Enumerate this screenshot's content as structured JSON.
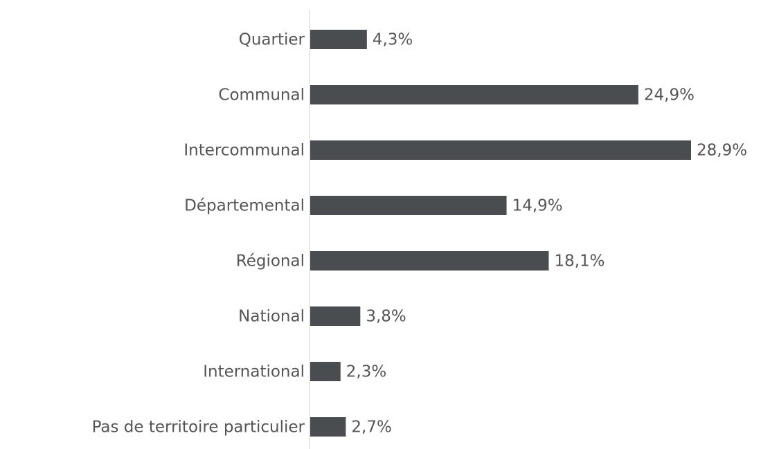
{
  "chart_data": {
    "type": "bar",
    "orientation": "horizontal",
    "categories": [
      "Quartier",
      "Communal",
      "Intercommunal",
      "Départemental",
      "Régional",
      "National",
      "International",
      "Pas de territoire particulier"
    ],
    "values": [
      4.3,
      24.9,
      28.9,
      14.9,
      18.1,
      3.8,
      2.3,
      2.7
    ],
    "value_labels": [
      "4,3%",
      "24,9%",
      "28,9%",
      "14,9%",
      "18,1%",
      "3,8%",
      "2,3%",
      "2,7%"
    ],
    "color": "#4a4d50"
  }
}
